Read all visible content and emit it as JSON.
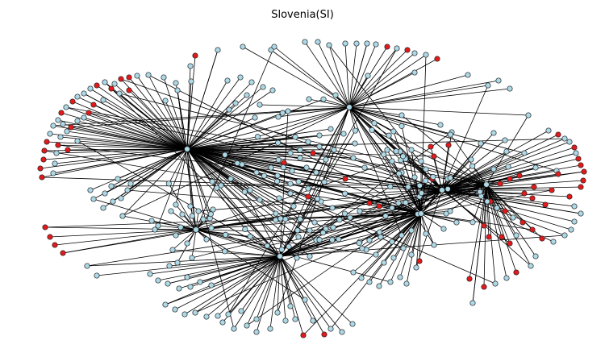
{
  "title": "Slovenia(SI)",
  "colors": {
    "node_default": "#add8e6",
    "node_highlight": "#e31a1c",
    "edge": "#000000",
    "node_stroke": "#222222"
  }
}
